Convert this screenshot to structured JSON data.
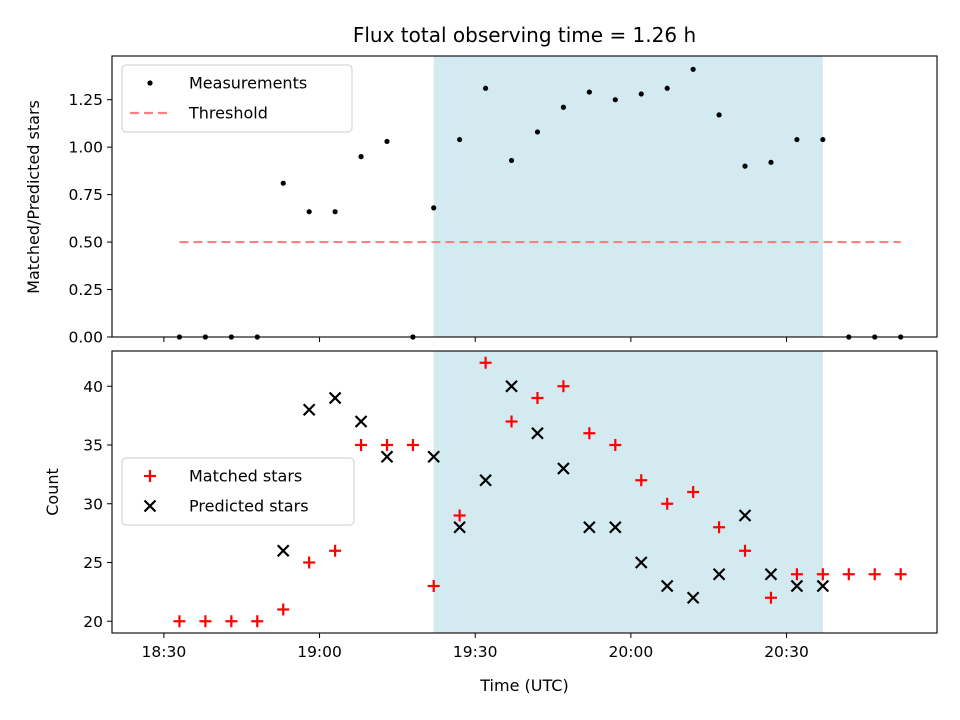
{
  "chart_data": [
    {
      "type": "scatter",
      "title": "Flux total observing time = 1.26 h",
      "xlabel": "",
      "ylabel": "Matched/Predicted stars",
      "ylim": [
        0,
        1.48
      ],
      "yticks": [
        "0.00",
        "0.25",
        "0.50",
        "0.75",
        "1.00",
        "1.25"
      ],
      "legend_position": "top-left",
      "highlight_span": {
        "from": "19:22",
        "to": "20:37",
        "color": "#d4eaf1"
      },
      "series": [
        {
          "name": "Measurements",
          "color": "#000000",
          "marker": "dot",
          "x": [
            "18:33",
            "18:38",
            "18:43",
            "18:48",
            "18:53",
            "18:58",
            "19:03",
            "19:08",
            "19:13",
            "19:18",
            "19:22",
            "19:27",
            "19:32",
            "19:37",
            "19:42",
            "19:47",
            "19:52",
            "19:57",
            "20:02",
            "20:07",
            "20:12",
            "20:17",
            "20:22",
            "20:27",
            "20:32",
            "20:37",
            "20:42",
            "20:47",
            "20:52"
          ],
          "y": [
            0.0,
            0.0,
            0.0,
            0.0,
            0.81,
            0.66,
            0.66,
            0.95,
            1.03,
            0.0,
            0.68,
            1.04,
            1.31,
            0.93,
            1.08,
            1.21,
            1.29,
            1.25,
            1.28,
            1.31,
            1.41,
            1.17,
            0.9,
            0.92,
            1.04,
            1.04,
            0.0,
            0.0,
            0.0
          ]
        },
        {
          "name": "Threshold",
          "color": "#ff7f7f",
          "style": "dashed",
          "x": [
            "18:33",
            "20:52"
          ],
          "y": [
            0.5,
            0.5
          ]
        }
      ]
    },
    {
      "type": "scatter",
      "title": "",
      "xlabel": "Time (UTC)",
      "ylabel": "Count",
      "ylim": [
        19,
        43
      ],
      "yticks": [
        "20",
        "25",
        "30",
        "35",
        "40"
      ],
      "xticks": [
        "18:30",
        "19:00",
        "19:30",
        "20:00",
        "20:30"
      ],
      "legend_position": "center-left",
      "highlight_span": {
        "from": "19:22",
        "to": "20:37",
        "color": "#d4eaf1"
      },
      "series": [
        {
          "name": "Matched stars",
          "color": "#ff0000",
          "marker": "plus",
          "x": [
            "18:33",
            "18:38",
            "18:43",
            "18:48",
            "18:53",
            "18:58",
            "19:03",
            "19:08",
            "19:13",
            "19:18",
            "19:22",
            "19:27",
            "19:32",
            "19:37",
            "19:42",
            "19:47",
            "19:52",
            "19:57",
            "20:02",
            "20:07",
            "20:12",
            "20:17",
            "20:22",
            "20:27",
            "20:32",
            "20:37",
            "20:42",
            "20:47",
            "20:52"
          ],
          "y": [
            20,
            20,
            20,
            20,
            21,
            25,
            26,
            35,
            35,
            35,
            23,
            29,
            42,
            37,
            39,
            40,
            36,
            35,
            32,
            30,
            31,
            28,
            26,
            22,
            24,
            24,
            24,
            24,
            24
          ]
        },
        {
          "name": "Predicted stars",
          "color": "#000000",
          "marker": "x",
          "x": [
            "18:53",
            "18:58",
            "19:03",
            "19:08",
            "19:13",
            "19:22",
            "19:27",
            "19:32",
            "19:37",
            "19:42",
            "19:47",
            "19:52",
            "19:57",
            "20:02",
            "20:07",
            "20:12",
            "20:17",
            "20:22",
            "20:27",
            "20:32",
            "20:37"
          ],
          "y": [
            26,
            38,
            39,
            37,
            34,
            34,
            28,
            32,
            40,
            36,
            33,
            28,
            28,
            25,
            23,
            22,
            24,
            29,
            24,
            23,
            23
          ]
        }
      ]
    }
  ]
}
